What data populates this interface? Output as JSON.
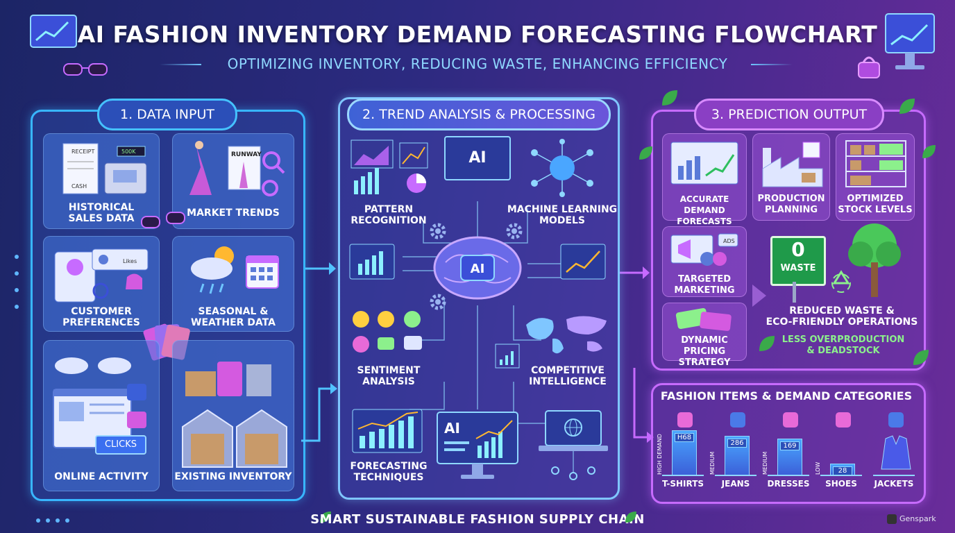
{
  "header": {
    "title": "AI FASHION INVENTORY DEMAND FORECASTING FLOWCHART",
    "subtitle": "OPTIMIZING INVENTORY, REDUCING WASTE, ENHANCING EFFICIENCY"
  },
  "data_input": {
    "heading": "1. DATA INPUT",
    "cards": [
      {
        "label": "HISTORICAL\nSALES DATA",
        "icon": "cash-register-icon"
      },
      {
        "label": "MARKET TRENDS",
        "icon": "runway-magazine-icon"
      },
      {
        "label": "CUSTOMER\nPREFERENCES",
        "icon": "profile-card-icon"
      },
      {
        "label": "SEASONAL &\nWEATHER DATA",
        "icon": "weather-calendar-icon"
      },
      {
        "label": "ONLINE ACTIVITY",
        "icon": "browser-clicks-icon"
      },
      {
        "label": "EXISTING INVENTORY",
        "icon": "warehouse-icon"
      }
    ],
    "mini_texts": {
      "receipt": "RECEIPT",
      "cash": "CASH",
      "price": "500K",
      "runway": "RUNWAY",
      "likes": "Likes",
      "clicks": "CLICKS"
    }
  },
  "processing": {
    "heading": "2. TREND ANALYSIS & PROCESSING",
    "items": [
      {
        "label": "PATTERN\nRECOGNITION",
        "icon": "charts-icon"
      },
      {
        "label": "MACHINE LEARNING\nMODELS",
        "icon": "neural-brain-icon"
      },
      {
        "label": "SENTIMENT\nANALYSIS",
        "icon": "emoji-faces-icon"
      },
      {
        "label": "COMPETITIVE\nINTELLIGENCE",
        "icon": "world-map-icon"
      },
      {
        "label": "FORECASTING\nTECHNIQUES",
        "icon": "forecast-chart-icon"
      }
    ],
    "ai_badge": "AI"
  },
  "prediction": {
    "heading": "3. PREDICTION OUTPUT",
    "cards": [
      {
        "label": "ACCURATE\nDEMAND FORECASTS",
        "icon": "forecast-screen-icon"
      },
      {
        "label": "PRODUCTION\nPLANNING",
        "icon": "factory-icon"
      },
      {
        "label": "OPTIMIZED\nSTOCK LEVELS",
        "icon": "shelves-icon"
      },
      {
        "label": "TARGETED\nMARKETING",
        "icon": "megaphone-icon"
      },
      {
        "label": "DYNAMIC PRICING\nSTRATEGY",
        "icon": "price-tag-icon"
      }
    ],
    "ads_text": "ADS",
    "waste_sign": {
      "number": "0",
      "word": "WASTE"
    },
    "reduced_waste": "REDUCED WASTE &\nECO-FRIENDLY OPERATIONS",
    "less_overproduction": "LESS OVERPRODUCTION\n& DEADSTOCK"
  },
  "categories": {
    "heading": "FASHION ITEMS & DEMAND CATEGORIES",
    "items": [
      {
        "name": "T-SHIRTS",
        "level": "HIGH DEMAND",
        "value_label": "H68",
        "icon": "tshirt-icon"
      },
      {
        "name": "JEANS",
        "level": "MEDIUM",
        "value_label": "286",
        "icon": "jeans-icon"
      },
      {
        "name": "DRESSES",
        "level": "MEDIUM",
        "value_label": "169",
        "icon": "dress-icon"
      },
      {
        "name": "SHOES",
        "level": "LOW",
        "value_label": "28",
        "icon": "heel-shoe-icon"
      },
      {
        "name": "JACKETS",
        "level": "",
        "value_label": "",
        "icon": "jacket-icon"
      }
    ]
  },
  "footer": {
    "text": "SMART SUSTAINABLE FASHION SUPPLY CHAIN"
  },
  "watermark": "Genspark"
}
